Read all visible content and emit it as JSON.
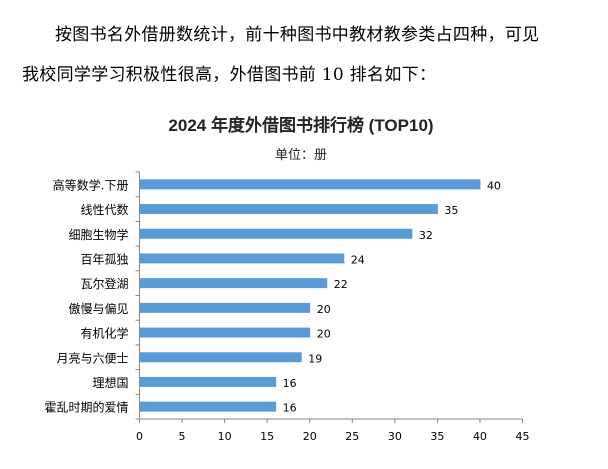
{
  "document": {
    "paragraph_lines": [
      "按图书名外借册数统计，前十种图书中教材教参类占四种，可见",
      "我校同学学习积极性很高，外借图书前 10 排名如下："
    ]
  },
  "chart_data": {
    "type": "bar",
    "orientation": "horizontal",
    "title": "2024 年度外借图书排行榜 (TOP10)",
    "subtitle": "单位：册",
    "categories": [
      "高等数学.下册",
      "线性代数",
      "细胞生物学",
      "百年孤独",
      "瓦尔登湖",
      "傲慢与偏见",
      "有机化学",
      "月亮与六便士",
      "理想国",
      "霍乱时期的爱情"
    ],
    "values": [
      40,
      35,
      32,
      24,
      22,
      20,
      20,
      19,
      16,
      16
    ],
    "data_labels": [
      "40",
      "35",
      "32",
      "24",
      "22",
      "20",
      "20",
      "19",
      "16",
      "16"
    ],
    "xlim": [
      0,
      45
    ],
    "x_ticks": [
      "0",
      "5",
      "10",
      "15",
      "20",
      "25",
      "30",
      "35",
      "40",
      "45"
    ],
    "grid": false,
    "legend": "none",
    "bar_color": "#5B9BD5"
  }
}
